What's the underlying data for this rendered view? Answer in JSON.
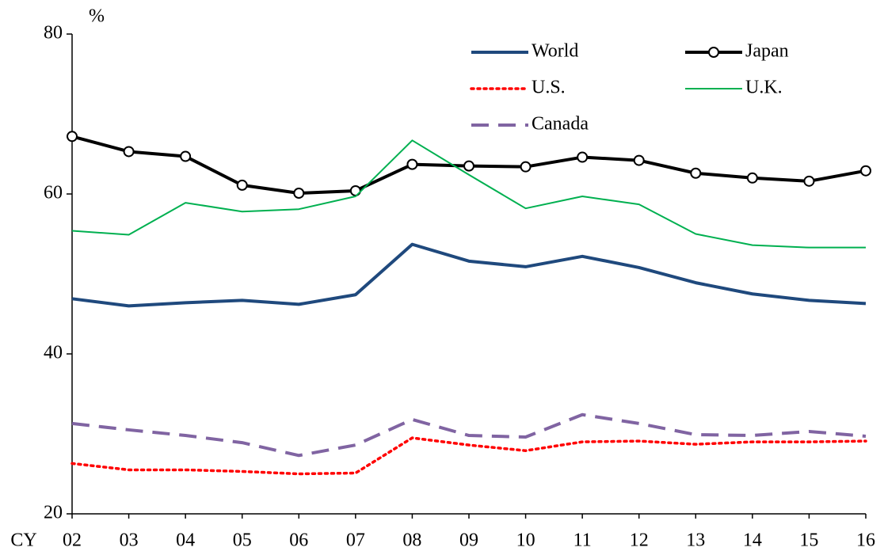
{
  "chart_data": {
    "type": "line",
    "y_unit": "%",
    "x_label": "CY",
    "categories": [
      "02",
      "03",
      "04",
      "05",
      "06",
      "07",
      "08",
      "09",
      "10",
      "11",
      "12",
      "13",
      "14",
      "15",
      "16"
    ],
    "series": [
      {
        "name": "World",
        "color": "#1f497d",
        "width": 4,
        "dash": "none",
        "marker": false,
        "values": [
          46.9,
          46.0,
          46.4,
          46.7,
          46.2,
          47.4,
          53.7,
          51.6,
          50.9,
          52.2,
          50.8,
          48.9,
          47.5,
          46.7,
          46.3
        ]
      },
      {
        "name": "Japan",
        "color": "#000000",
        "width": 4,
        "dash": "none",
        "marker": true,
        "values": [
          67.2,
          65.3,
          64.7,
          61.1,
          60.1,
          60.4,
          63.7,
          63.5,
          63.4,
          64.6,
          64.2,
          62.6,
          62.0,
          61.6,
          62.9
        ]
      },
      {
        "name": "U.S.",
        "color": "#ff0000",
        "width": 3.5,
        "dash": "dotted",
        "marker": false,
        "values": [
          26.3,
          25.5,
          25.5,
          25.3,
          25.0,
          25.1,
          29.5,
          28.6,
          27.9,
          29.0,
          29.1,
          28.7,
          29.0,
          29.0,
          29.1
        ]
      },
      {
        "name": "U.K.",
        "color": "#00b050",
        "width": 2,
        "dash": "none",
        "marker": false,
        "values": [
          55.4,
          54.9,
          58.9,
          57.8,
          58.1,
          59.7,
          66.7,
          62.4,
          58.2,
          59.7,
          58.7,
          55.0,
          53.6,
          53.3,
          53.3
        ]
      },
      {
        "name": "Canada",
        "color": "#8064a2",
        "width": 4,
        "dash": "dashed",
        "marker": false,
        "values": [
          31.3,
          30.5,
          29.8,
          28.9,
          27.3,
          28.6,
          31.8,
          29.8,
          29.6,
          32.4,
          31.3,
          29.9,
          29.8,
          30.3,
          29.7
        ]
      }
    ],
    "ylim": [
      20,
      80
    ],
    "yticks": [
      20,
      40,
      60,
      80
    ],
    "grid": false,
    "legend": "top-right"
  }
}
